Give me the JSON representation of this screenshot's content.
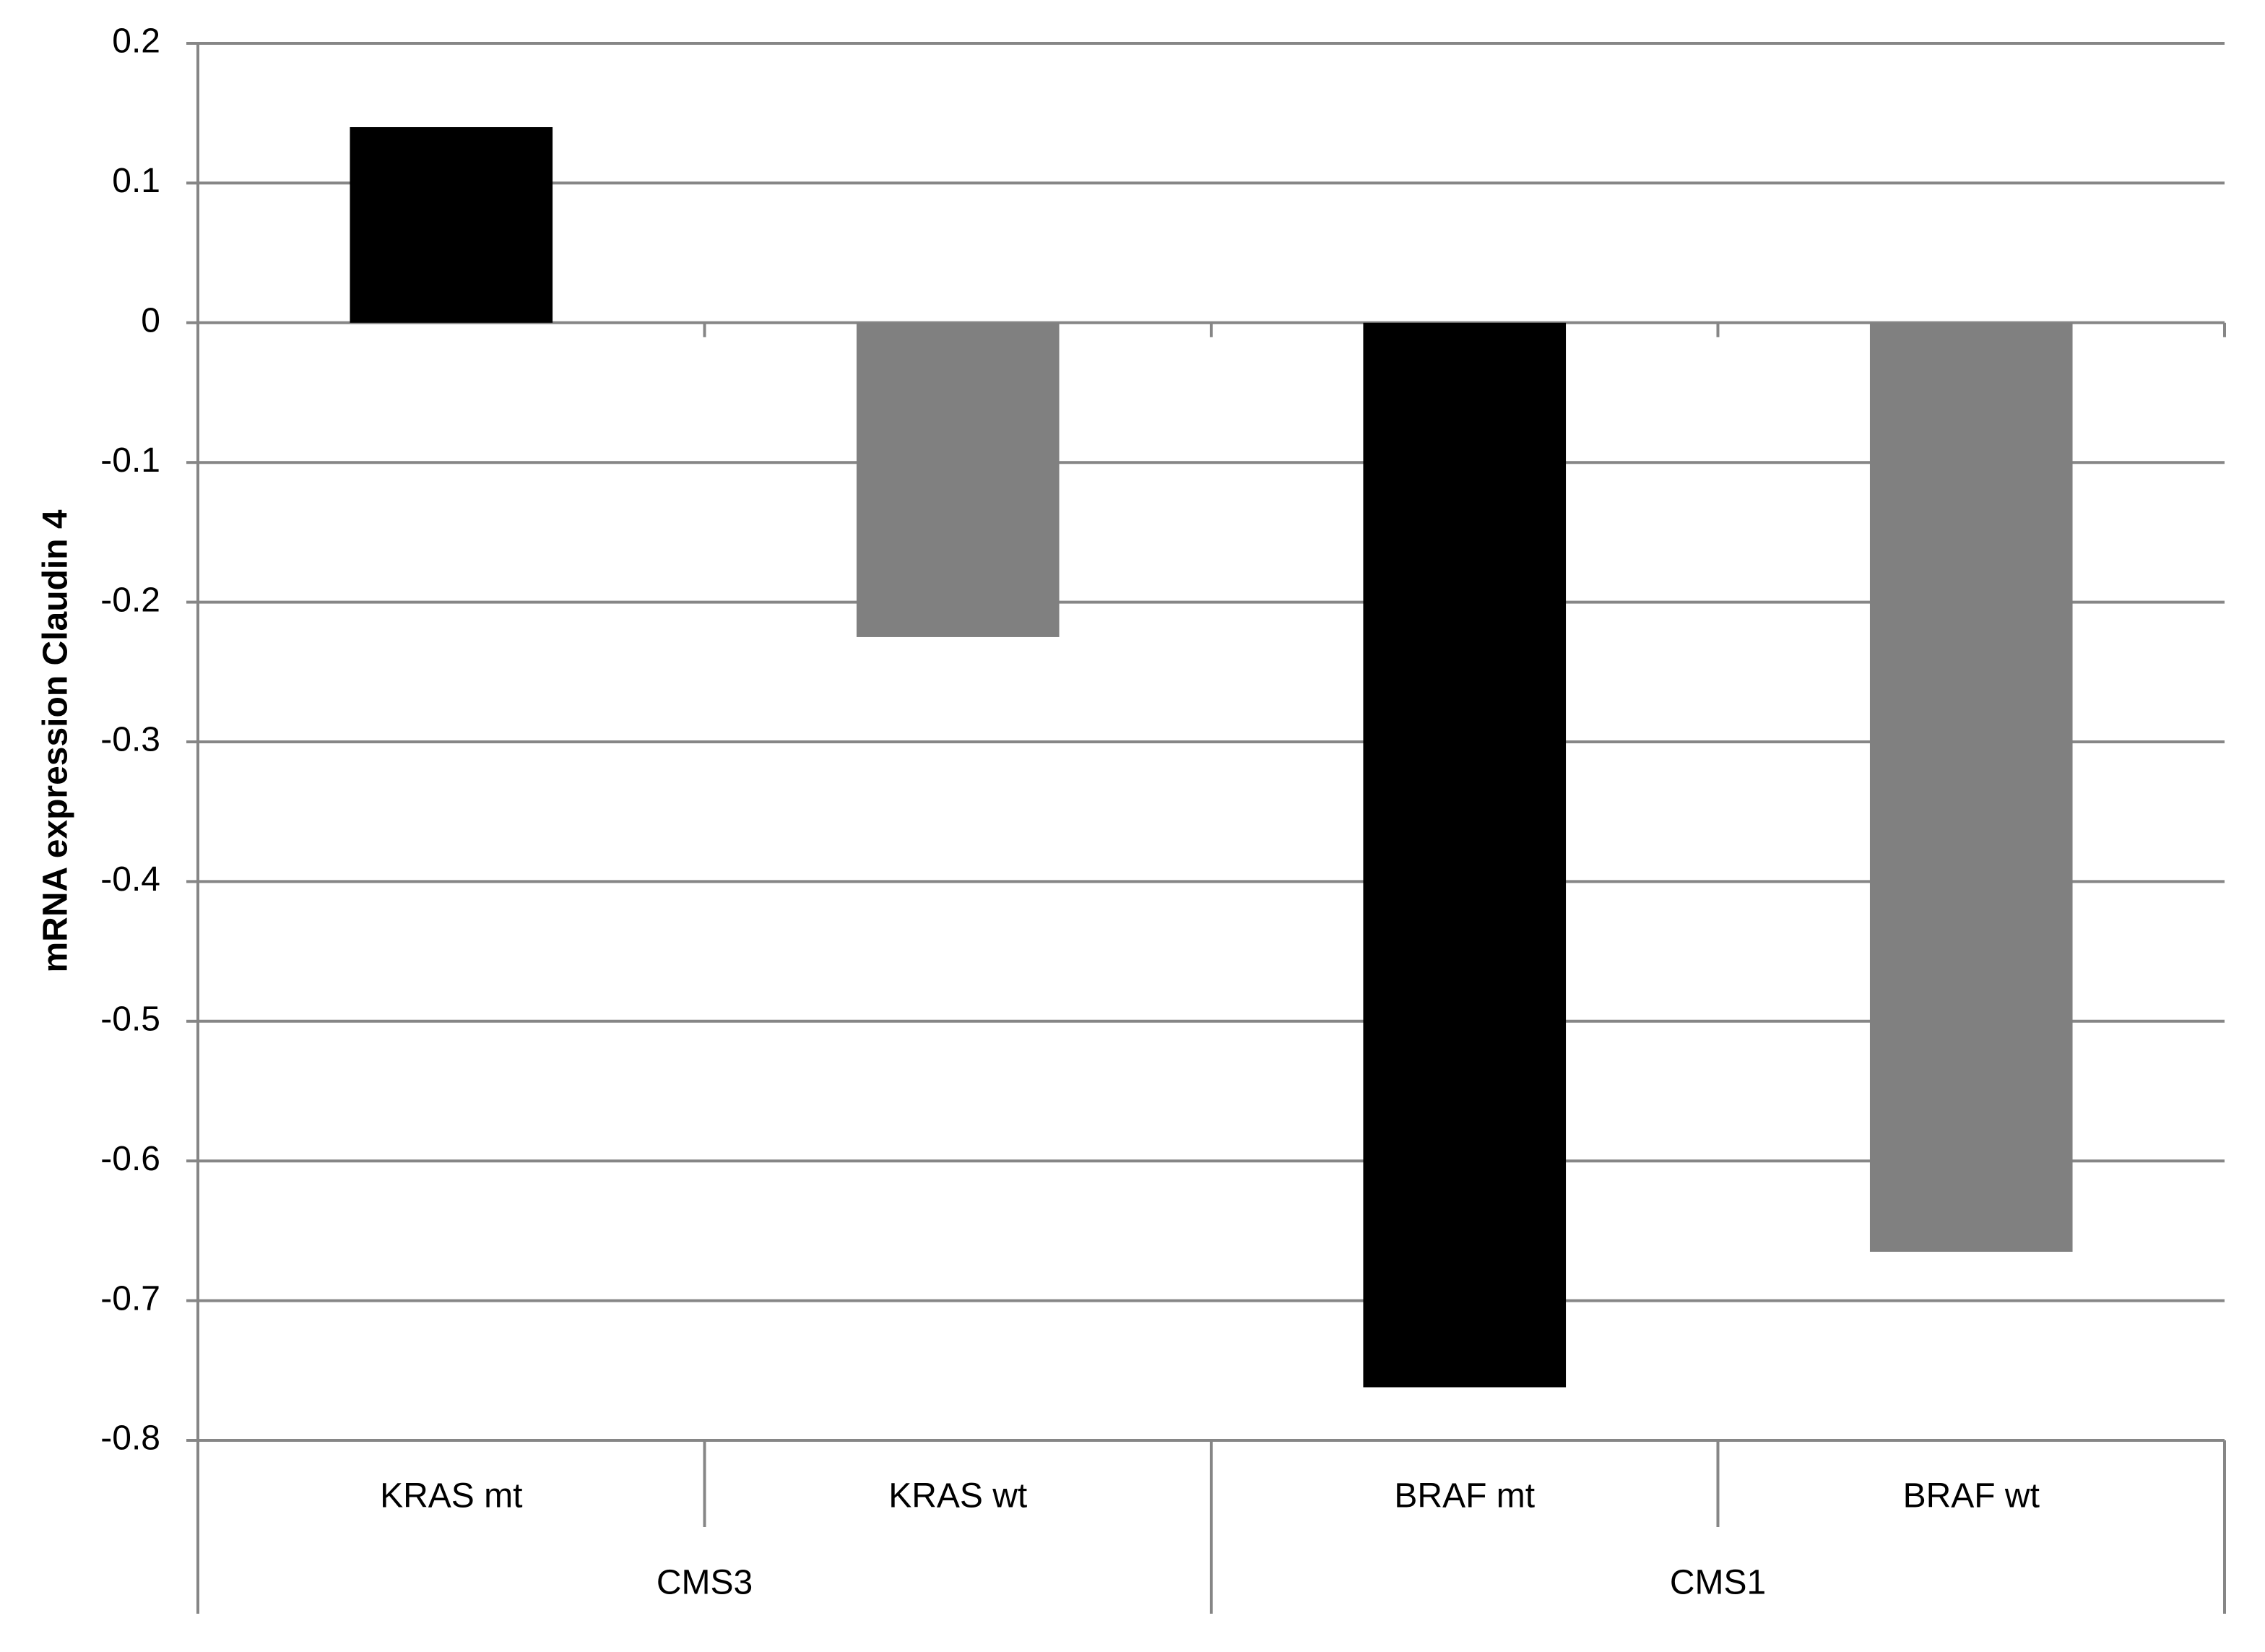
{
  "chart_data": {
    "type": "bar",
    "y_label": "mRNA expression Claudin 4",
    "categories": [
      "KRAS mt",
      "KRAS wt",
      "BRAF mt",
      "BRAF wt"
    ],
    "groups": [
      "CMS3",
      "CMS1"
    ],
    "values": [
      0.14,
      -0.225,
      -0.762,
      -0.665
    ],
    "colors": [
      "#000000",
      "#808080",
      "#000000",
      "#808080"
    ],
    "ylim": [
      -0.8,
      0.2
    ],
    "yticks": [
      0.2,
      0.1,
      0,
      -0.1,
      -0.2,
      -0.3,
      -0.4,
      -0.5,
      -0.6,
      -0.7,
      -0.8
    ],
    "grid": true
  }
}
